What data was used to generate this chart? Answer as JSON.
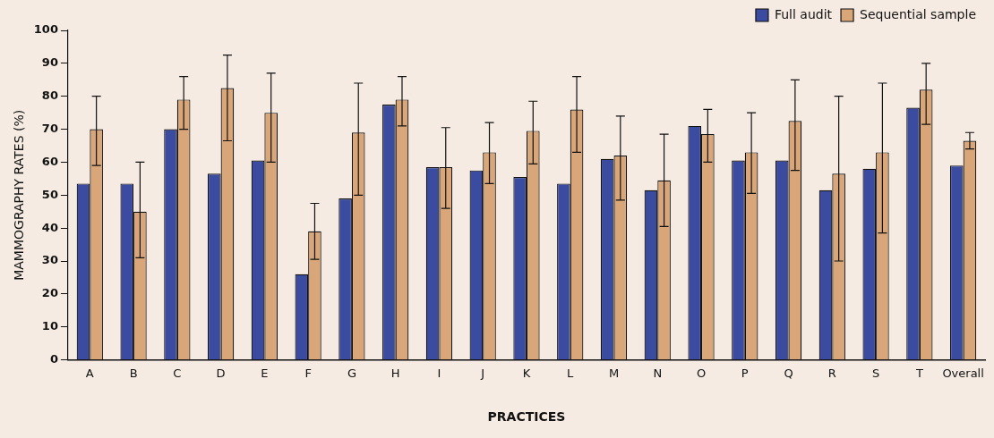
{
  "chart_data": {
    "type": "bar",
    "xlabel": "PRACTICES",
    "ylabel": "MAMMOGRAPHY RATES (%)",
    "categories": [
      "A",
      "B",
      "C",
      "D",
      "E",
      "F",
      "G",
      "H",
      "I",
      "J",
      "K",
      "L",
      "M",
      "N",
      "O",
      "P",
      "Q",
      "R",
      "S",
      "T",
      "Overall"
    ],
    "series": [
      {
        "name": "Full audit",
        "color": "#3a4ba0",
        "values": [
          53.5,
          53.5,
          70,
          56.5,
          60.5,
          26,
          49,
          77.5,
          58.5,
          57.5,
          55.5,
          53.5,
          61,
          51.5,
          71,
          60.5,
          60.5,
          51.5,
          58,
          76.5,
          59
        ]
      },
      {
        "name": "Sequential sample",
        "color": "#d8a679",
        "values": [
          70,
          45,
          79,
          82.5,
          75,
          39,
          69,
          79,
          58.5,
          63,
          69.5,
          76,
          62,
          54.5,
          68.5,
          63,
          72.5,
          56.5,
          63,
          82,
          66.5
        ],
        "errors": [
          [
            59,
            80
          ],
          [
            31,
            60
          ],
          [
            70,
            86
          ],
          [
            66.5,
            92.5
          ],
          [
            60,
            87
          ],
          [
            30.5,
            47.5
          ],
          [
            50,
            84
          ],
          [
            71,
            86
          ],
          [
            46,
            70.5
          ],
          [
            53.5,
            72
          ],
          [
            59.5,
            78.5
          ],
          [
            63,
            86
          ],
          [
            48.5,
            74
          ],
          [
            40.5,
            68.5
          ],
          [
            60,
            76
          ],
          [
            50.5,
            75
          ],
          [
            57.5,
            85
          ],
          [
            30,
            80
          ],
          [
            38.5,
            84
          ],
          [
            71.5,
            90
          ],
          [
            64,
            69
          ]
        ]
      }
    ],
    "ylim": [
      0,
      100
    ],
    "yticks": [
      0,
      10,
      20,
      30,
      40,
      50,
      60,
      70,
      80,
      90,
      100
    ],
    "grid": false,
    "legend": "top right"
  }
}
